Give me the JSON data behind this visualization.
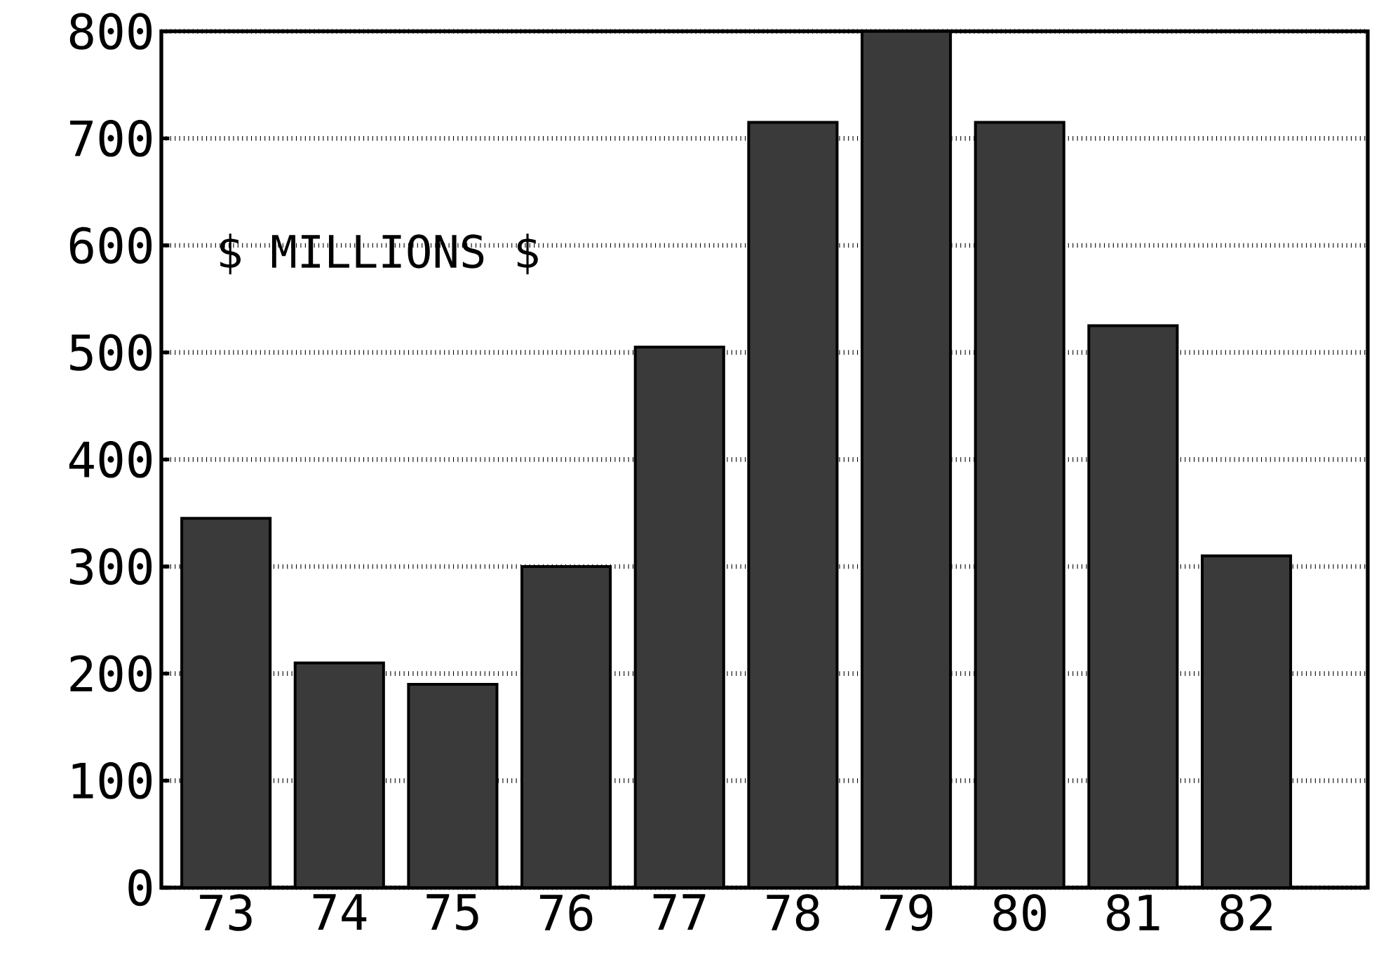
{
  "chart_data": {
    "type": "bar",
    "categories": [
      "73",
      "74",
      "75",
      "76",
      "77",
      "78",
      "79",
      "80",
      "81",
      "82"
    ],
    "values": [
      345,
      210,
      190,
      300,
      505,
      715,
      800,
      715,
      525,
      310
    ],
    "color": "#3a3a3a",
    "ylim": [
      0,
      800
    ],
    "yticks": [
      0,
      100,
      200,
      300,
      400,
      500,
      600,
      700,
      800
    ],
    "grid": "y",
    "annotations": [
      "$ MILLIONS $"
    ]
  }
}
